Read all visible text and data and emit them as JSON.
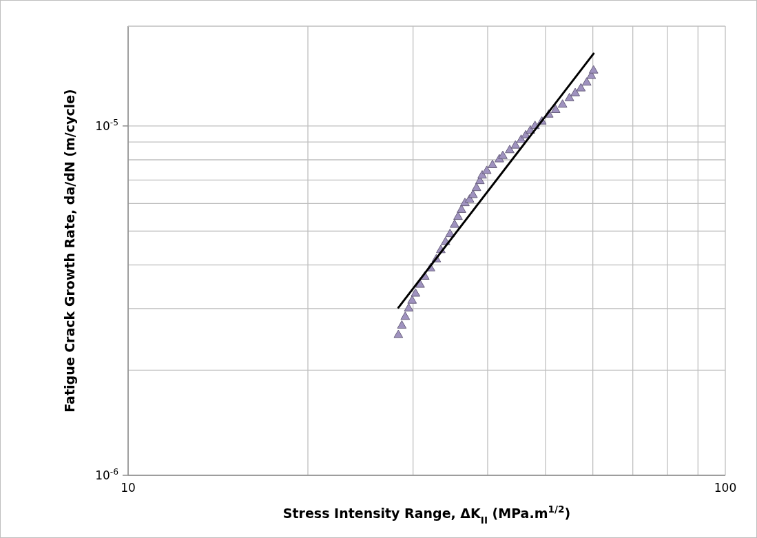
{
  "chart_data": {
    "type": "scatter",
    "xlabel": "Stress Intensity Range, ΔK$_{II}$ (MPa.m$^{1/2}$)",
    "ylabel": "Fatigue Crack Growth Rate, da/dN (m/cycle)",
    "log": "xy",
    "grid": true,
    "xlim": [
      10,
      100
    ],
    "xticks": [
      10,
      100
    ],
    "ylim": [
      1e-06,
      1.93e-05
    ],
    "yticks": [
      {
        "value": 1e-06,
        "label": "10$^{-6}$"
      },
      {
        "value": 1e-05,
        "label": "10$^{-5}$"
      }
    ],
    "series": [
      {
        "marker": "triangle",
        "color": "#9f92bf",
        "x": [
          28.35,
          28.73,
          29.11,
          29.5,
          29.89,
          30.29,
          30.83,
          31.39,
          32.09,
          32.81,
          33.39,
          34.0,
          34.59,
          35.21,
          35.68,
          36.16,
          36.64,
          37.3,
          37.8,
          38.31,
          38.82,
          39.16,
          39.86,
          40.75,
          41.84,
          42.41,
          43.55,
          44.52,
          45.51,
          46.33,
          47.16,
          48.01,
          49.29,
          50.63,
          51.99,
          53.39,
          54.83,
          56.06,
          57.31,
          58.6,
          59.64,
          60.17
        ],
        "values": [
          2.52e-06,
          2.68e-06,
          2.84e-06,
          3e-06,
          3.16e-06,
          3.31e-06,
          3.51e-06,
          3.7e-06,
          3.91e-06,
          4.15e-06,
          4.41e-06,
          4.65e-06,
          4.9e-06,
          5.21e-06,
          5.49e-06,
          5.75e-06,
          6.01e-06,
          6.15e-06,
          6.34e-06,
          6.64e-06,
          6.95e-06,
          7.21e-06,
          7.43e-06,
          7.72e-06,
          8.02e-06,
          8.2e-06,
          8.52e-06,
          8.78e-06,
          9.12e-06,
          9.4e-06,
          9.69e-06,
          9.99e-06,
          1.029e-05,
          1.077e-05,
          1.11e-05,
          1.15e-05,
          1.2e-05,
          1.24e-05,
          1.28e-05,
          1.33e-05,
          1.39e-05,
          1.44e-05
        ]
      },
      {
        "type": "line",
        "marker": "none",
        "line_style": "solid",
        "color": "#000000",
        "x": [
          28.35,
          60.17
        ],
        "values": [
          3.02e-06,
          1.61e-05
        ]
      }
    ]
  }
}
